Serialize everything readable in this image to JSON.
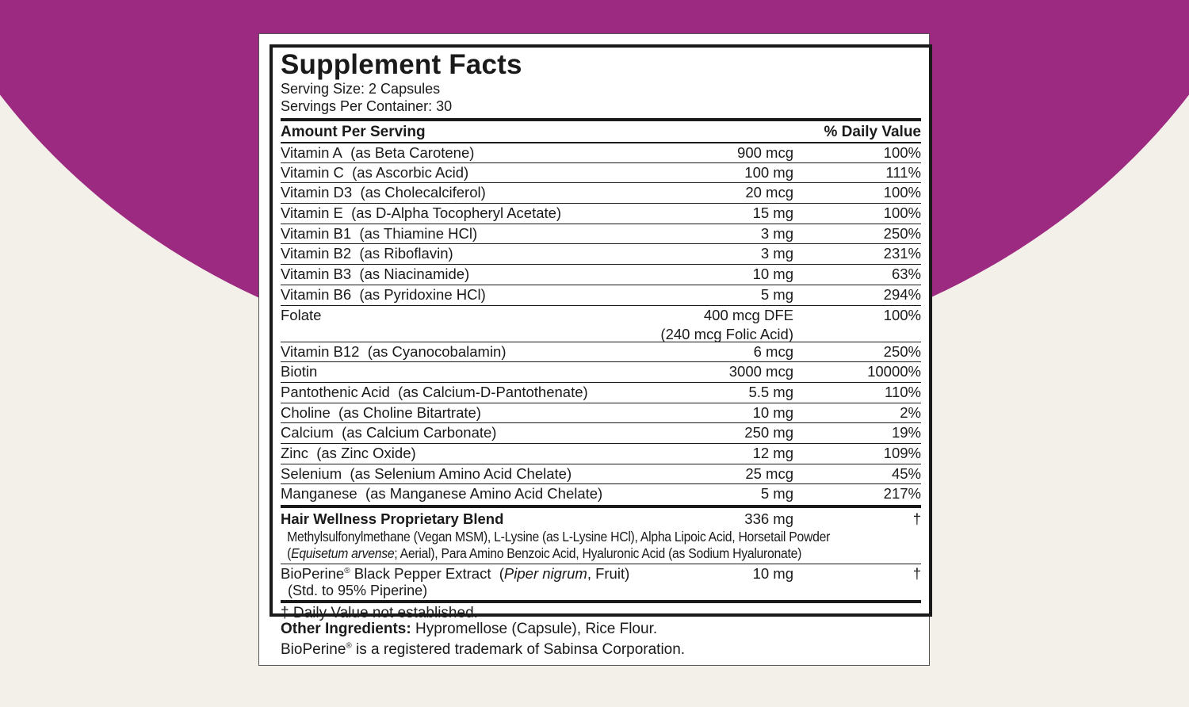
{
  "colors": {
    "brand_purple": "#9b2a80",
    "background": "#f3efe9"
  },
  "label": {
    "title": "Supplement Facts",
    "serving_size": "Serving Size: 2 Capsules",
    "servings_per_container": "Servings Per Container: 30",
    "header_amount": "Amount Per Serving",
    "header_dv": "% Daily Value",
    "rows": [
      {
        "name": "Vitamin A",
        "source": "(as Beta Carotene)",
        "amount": "900 mcg",
        "dv": "100%"
      },
      {
        "name": "Vitamin C",
        "source": "(as Ascorbic Acid)",
        "amount": "100 mg",
        "dv": "111%"
      },
      {
        "name": "Vitamin D3",
        "source": "(as Cholecalciferol)",
        "amount": "20 mcg",
        "dv": "100%"
      },
      {
        "name": "Vitamin E",
        "source": "(as D-Alpha Tocopheryl Acetate)",
        "amount": "15 mg",
        "dv": "100%"
      },
      {
        "name": "Vitamin B1",
        "source": "(as Thiamine HCl)",
        "amount": "3 mg",
        "dv": "250%"
      },
      {
        "name": "Vitamin B2",
        "source": "(as Riboflavin)",
        "amount": "3 mg",
        "dv": "231%"
      },
      {
        "name": "Vitamin B3",
        "source": "(as Niacinamide)",
        "amount": "10 mg",
        "dv": "63%"
      },
      {
        "name": "Vitamin B6",
        "source": "(as Pyridoxine HCl)",
        "amount": "5 mg",
        "dv": "294%"
      },
      {
        "name": "Folate",
        "source": "",
        "amount": "400 mcg DFE",
        "amount2": "(240 mcg Folic Acid)",
        "dv": "100%"
      },
      {
        "name": "Vitamin B12",
        "source": "(as Cyanocobalamin)",
        "amount": "6 mcg",
        "dv": "250%"
      },
      {
        "name": "Biotin",
        "source": "",
        "amount": "3000 mcg",
        "dv": "10000%"
      },
      {
        "name": "Pantothenic Acid",
        "source": "(as Calcium-D-Pantothenate)",
        "amount": "5.5 mg",
        "dv": "110%"
      },
      {
        "name": "Choline",
        "source": "(as Choline Bitartrate)",
        "amount": "10 mg",
        "dv": "2%"
      },
      {
        "name": "Calcium",
        "source": "(as Calcium Carbonate)",
        "amount": "250 mg",
        "dv": "19%"
      },
      {
        "name": "Zinc",
        "source": "(as Zinc Oxide)",
        "amount": "12 mg",
        "dv": "109%"
      },
      {
        "name": "Selenium",
        "source": "(as Selenium Amino Acid Chelate)",
        "amount": "25 mcg",
        "dv": "45%"
      },
      {
        "name": "Manganese",
        "source": "(as Manganese Amino Acid Chelate)",
        "amount": "5 mg",
        "dv": "217%"
      }
    ],
    "blend": {
      "name": "Hair Wellness Proprietary Blend",
      "amount": "336 mg",
      "dv": "†",
      "line1": "Methylsulfonylmethane (Vegan MSM), L-Lysine (as L-Lysine HCl), Alpha Lipoic Acid, Horsetail Powder",
      "line2_open": "(",
      "line2_italic": "Equisetum arvense",
      "line2_rest": "; Aerial), Para Amino Benzoic Acid, Hyaluronic Acid (as Sodium Hyaluronate)"
    },
    "bioperine": {
      "name": "BioPerine",
      "reg": "®",
      "name_rest": " Black Pepper Extract  (",
      "italic": "Piper nigrum",
      "rest": ", Fruit)",
      "line2": "(Std. to 95% Piperine)",
      "amount": "10 mg",
      "dv": "†"
    },
    "footnote": "† Daily Value not established.",
    "other_label": "Other Ingredients:",
    "other_text": " Hypromellose (Capsule), Rice Flour.",
    "trademark_name": "BioPerine",
    "trademark_reg": "®",
    "trademark_text": " is a registered trademark of Sabinsa Corporation."
  }
}
